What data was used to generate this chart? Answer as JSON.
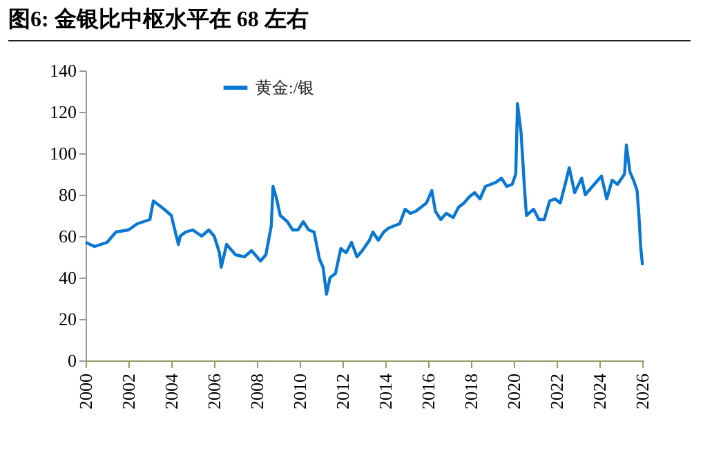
{
  "chart_data": {
    "type": "line",
    "title": "图6:  金银比中枢水平在 68 左右",
    "x": [
      "2000-01",
      "2000-06",
      "2001-01",
      "2001-06",
      "2002-01",
      "2002-06",
      "2003-01",
      "2003-03",
      "2003-06",
      "2003-09",
      "2004-01",
      "2004-03",
      "2004-05",
      "2004-06",
      "2004-09",
      "2005-01",
      "2005-06",
      "2005-10",
      "2006-01",
      "2006-04",
      "2006-05",
      "2006-08",
      "2007-01",
      "2007-06",
      "2007-10",
      "2008-01",
      "2008-03",
      "2008-06",
      "2008-09",
      "2008-10",
      "2008-12",
      "2009-02",
      "2009-06",
      "2009-09",
      "2009-12",
      "2010-03",
      "2010-06",
      "2010-09",
      "2010-12",
      "2011-02",
      "2011-04",
      "2011-06",
      "2011-09",
      "2011-12",
      "2012-03",
      "2012-06",
      "2012-09",
      "2012-12",
      "2013-04",
      "2013-06",
      "2013-09",
      "2013-12",
      "2014-03",
      "2014-06",
      "2014-09",
      "2014-12",
      "2015-03",
      "2015-06",
      "2015-09",
      "2015-12",
      "2016-03",
      "2016-05",
      "2016-08",
      "2016-11",
      "2017-03",
      "2017-06",
      "2017-09",
      "2017-12",
      "2018-03",
      "2018-06",
      "2018-09",
      "2018-12",
      "2019-03",
      "2019-06",
      "2019-09",
      "2019-12",
      "2020-02",
      "2020-03",
      "2020-05",
      "2020-07",
      "2020-08",
      "2020-12",
      "2021-03",
      "2021-06",
      "2021-09",
      "2021-12",
      "2022-03",
      "2022-06",
      "2022-08",
      "2022-11",
      "2023-03",
      "2023-05",
      "2023-08",
      "2023-11",
      "2024-02",
      "2024-05",
      "2024-08",
      "2024-11",
      "2025-03",
      "2025-04",
      "2025-06",
      "2025-08",
      "2025-10",
      "2025-11",
      "2025-12",
      "2026-01"
    ],
    "series": [
      {
        "name": "黄金:/银",
        "color": "#0a78d2",
        "values": [
          57,
          55,
          57,
          62,
          63,
          66,
          68,
          77,
          75,
          73,
          70,
          63,
          56,
          60,
          62,
          63,
          60,
          63,
          60,
          52,
          45,
          56,
          51,
          50,
          53,
          50,
          48,
          51,
          65,
          84,
          78,
          70,
          67,
          63,
          63,
          67,
          63,
          62,
          49,
          45,
          32,
          40,
          42,
          54,
          52,
          57,
          50,
          53,
          58,
          62,
          58,
          62,
          64,
          65,
          66,
          73,
          71,
          72,
          74,
          76,
          82,
          72,
          68,
          71,
          69,
          74,
          76,
          79,
          81,
          78,
          84,
          85,
          86,
          88,
          84,
          85,
          90,
          124,
          110,
          82,
          70,
          73,
          68,
          68,
          77,
          78,
          76,
          86,
          93,
          81,
          88,
          80,
          83,
          86,
          89,
          78,
          87,
          85,
          90,
          104,
          91,
          87,
          82,
          70,
          55,
          46
        ]
      }
    ],
    "xlim": [
      "2000-01-01",
      "2026-01-20"
    ],
    "xticks": [
      "2000",
      "2002",
      "2004",
      "2006",
      "2008",
      "2010",
      "2012",
      "2014",
      "2016",
      "2018",
      "2020",
      "2022",
      "2024",
      "2026"
    ],
    "ylim": [
      0,
      140
    ],
    "yticks": [
      0,
      20,
      40,
      60,
      80,
      100,
      120,
      140
    ],
    "legend": "top",
    "grid": false,
    "marker": "none",
    "line_style": "solid"
  }
}
